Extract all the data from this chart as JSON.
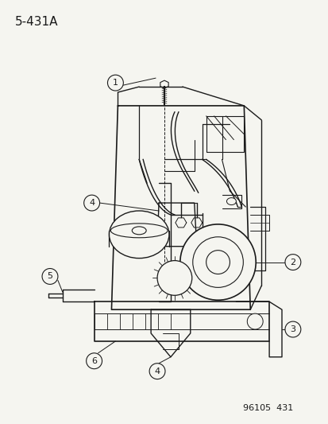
{
  "title_text": "5-431A",
  "footer_text": "96105  431",
  "background_color": "#f5f5f0",
  "line_color": "#1a1a1a",
  "label_color": "#1a1a1a",
  "title_fontsize": 11,
  "footer_fontsize": 8,
  "label_fontsize": 8,
  "fig_width": 4.14,
  "fig_height": 5.33,
  "dpi": 100
}
